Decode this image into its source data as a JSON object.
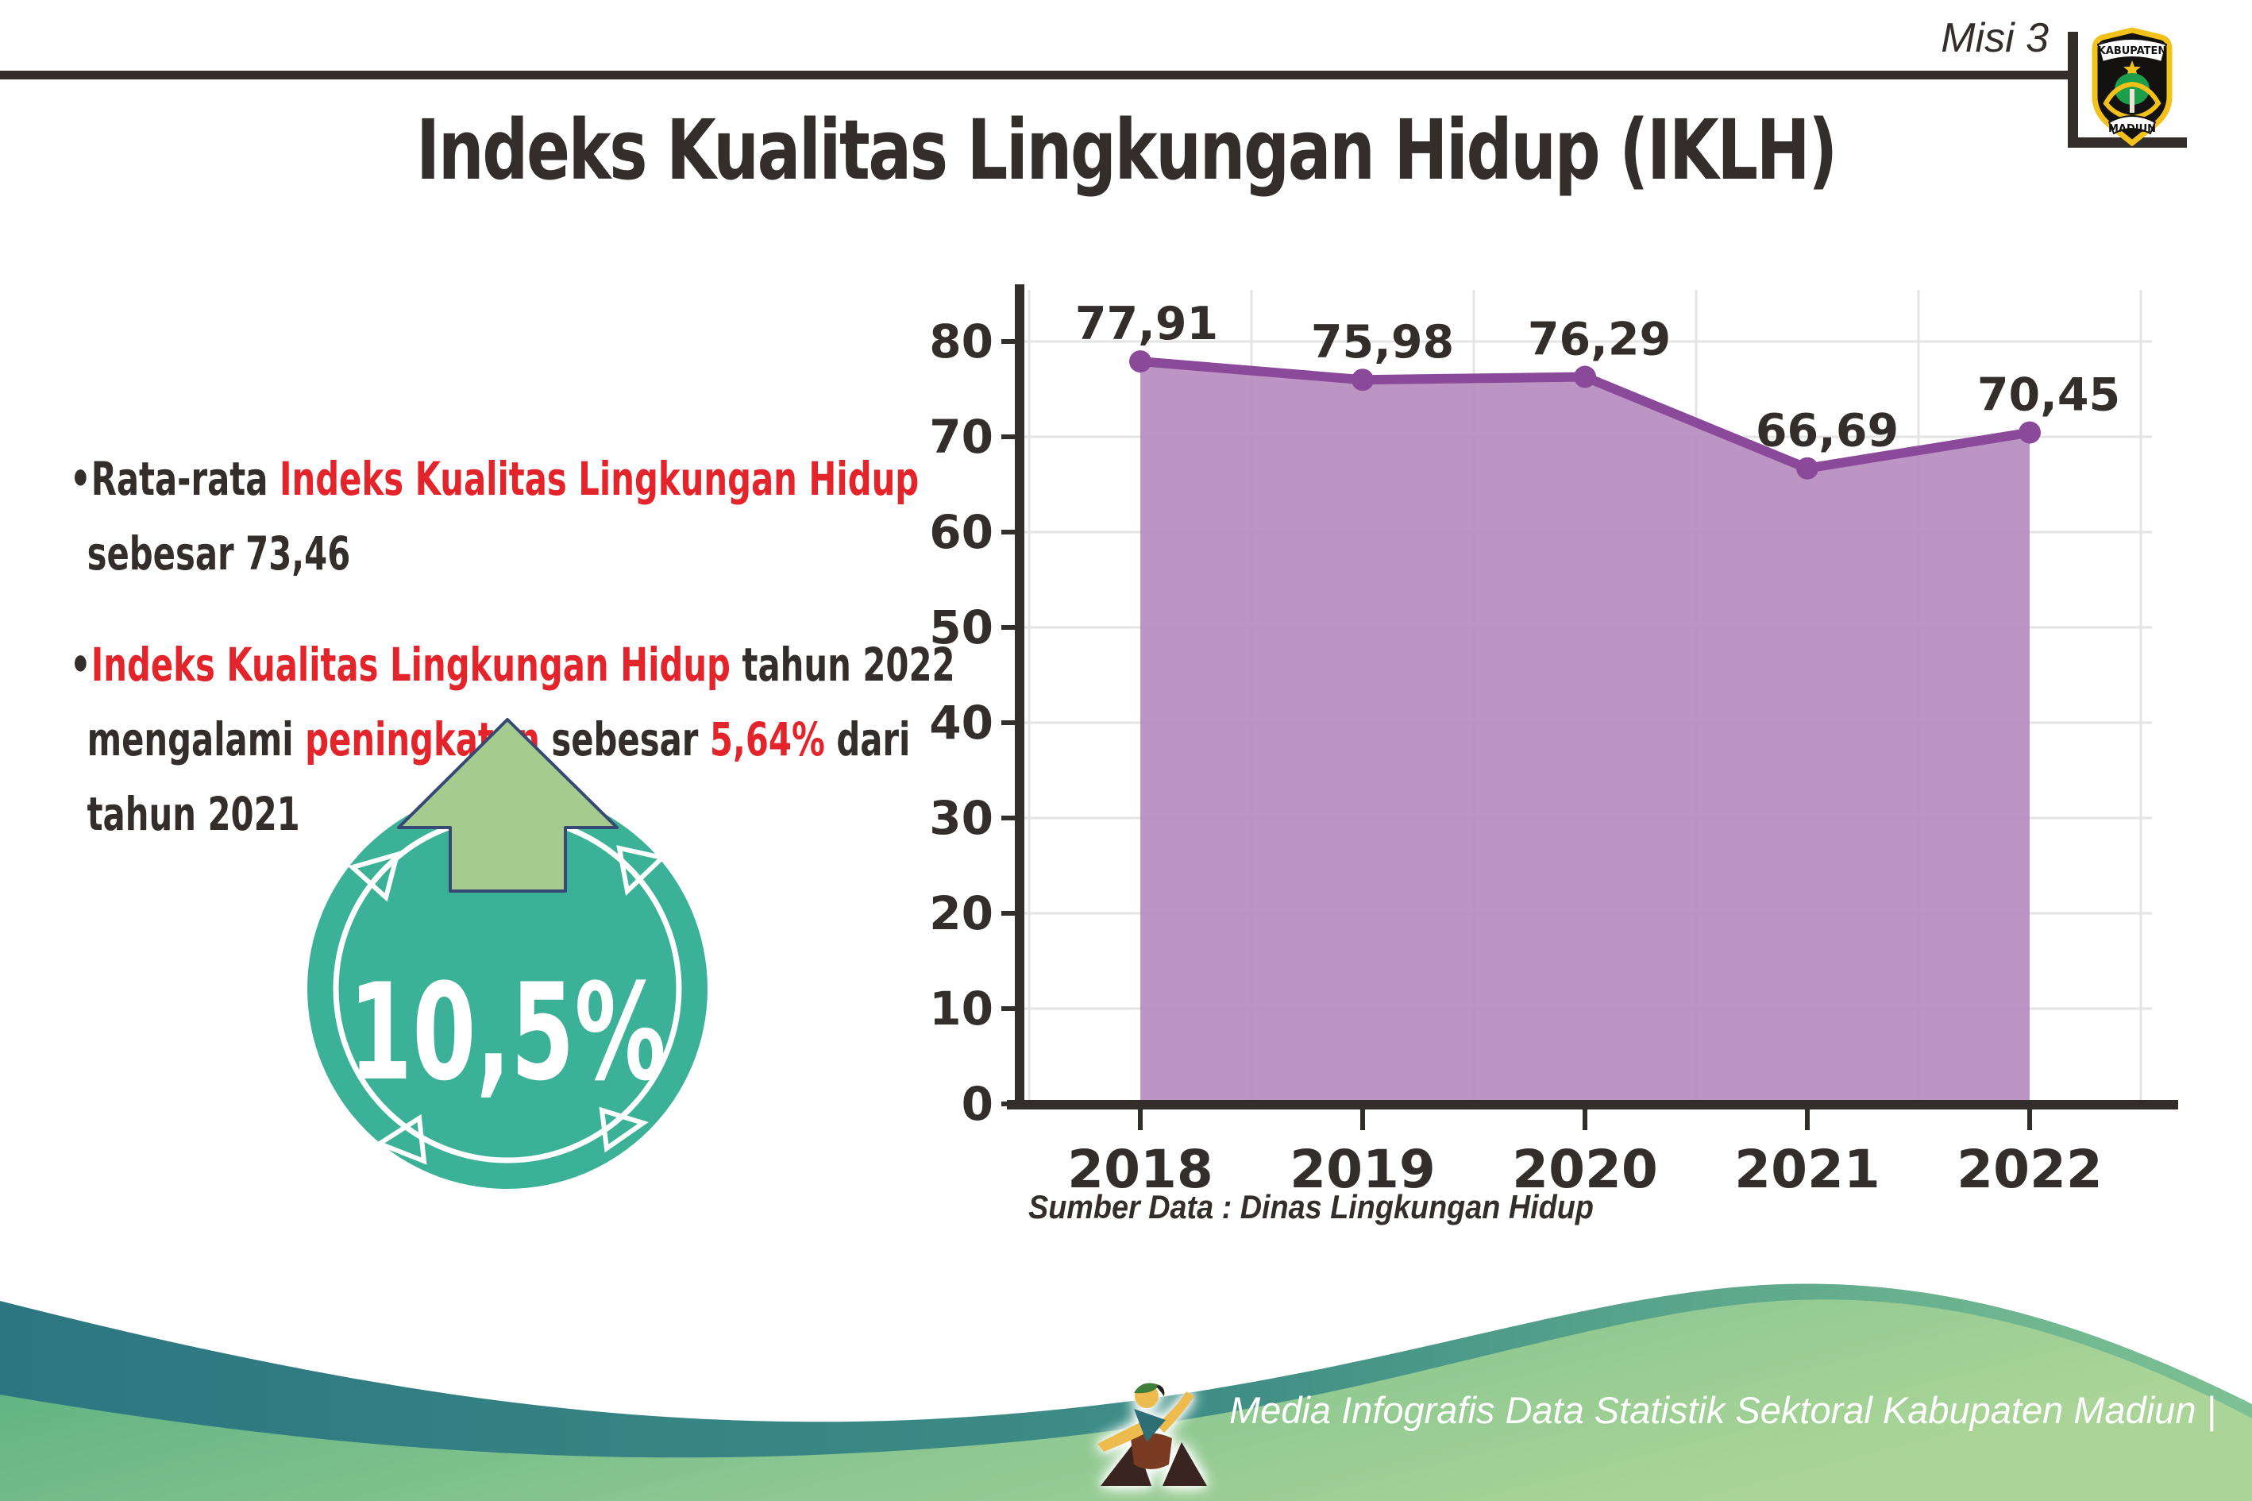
{
  "header": {
    "misi_label": "Misi 3",
    "title": "Indeks Kualitas Lingkungan Hidup (IKLH)",
    "logo": {
      "top_text": "KABUPATEN",
      "bottom_text": "MADIUN"
    }
  },
  "icons": {
    "header_logo": "kabupaten-madiun-emblem",
    "badge_arrow": "up-arrow",
    "footer_mascot": "dancer-figure"
  },
  "colors": {
    "dark_text": "#332d2b",
    "red_text": "#e3242b",
    "badge_circle": "#3bb297",
    "badge_arrow": "#a6cb8f",
    "badge_arrow_outline": "#364a73",
    "chart_line": "#8a4a99",
    "chart_fill": "#b78cc0",
    "chart_axis": "#332d2b",
    "chart_grid": "#e5e3e3",
    "footer_teal": "#2c7681",
    "footer_green_light": "#abd598"
  },
  "insights": [
    {
      "lines": [
        [
          {
            "t": "•Rata-rata ",
            "c": "d"
          },
          {
            "t": "Indeks Kualitas Lingkungan Hidup",
            "c": "r"
          }
        ],
        [
          {
            "t": "sebesar 73,46",
            "c": "d"
          }
        ]
      ]
    },
    {
      "lines": [
        [
          {
            "t": "•",
            "c": "d"
          },
          {
            "t": "Indeks Kualitas Lingkungan Hidup",
            "c": "r"
          },
          {
            "t": " tahun 2022",
            "c": "d"
          }
        ],
        [
          {
            "t": "mengalami ",
            "c": "d"
          },
          {
            "t": "peningkatan",
            "c": "r"
          },
          {
            "t": " sebesar ",
            "c": "d"
          },
          {
            "t": "5,64%",
            "c": "r"
          },
          {
            "t": " dari",
            "c": "d"
          }
        ],
        [
          {
            "t": "tahun 2021",
            "c": "d"
          }
        ]
      ]
    }
  ],
  "badge": {
    "value": "10,5%"
  },
  "chart_data": {
    "type": "area",
    "categories": [
      "2018",
      "2019",
      "2020",
      "2021",
      "2022"
    ],
    "values": [
      77.91,
      75.98,
      76.29,
      66.69,
      70.45
    ],
    "value_labels": [
      "77,91",
      "75,98",
      "76,29",
      "66,69",
      "70,45"
    ],
    "title": "",
    "xlabel": "",
    "ylabel": "",
    "ylim": [
      0,
      80
    ],
    "ytick_step": 10,
    "grid": true,
    "legend": "none",
    "source_note": "Sumber Data : Dinas Lingkungan Hidup"
  },
  "footer": {
    "credit": "Media Infografis Data Statistik Sektoral Kabupaten Madiun |"
  }
}
